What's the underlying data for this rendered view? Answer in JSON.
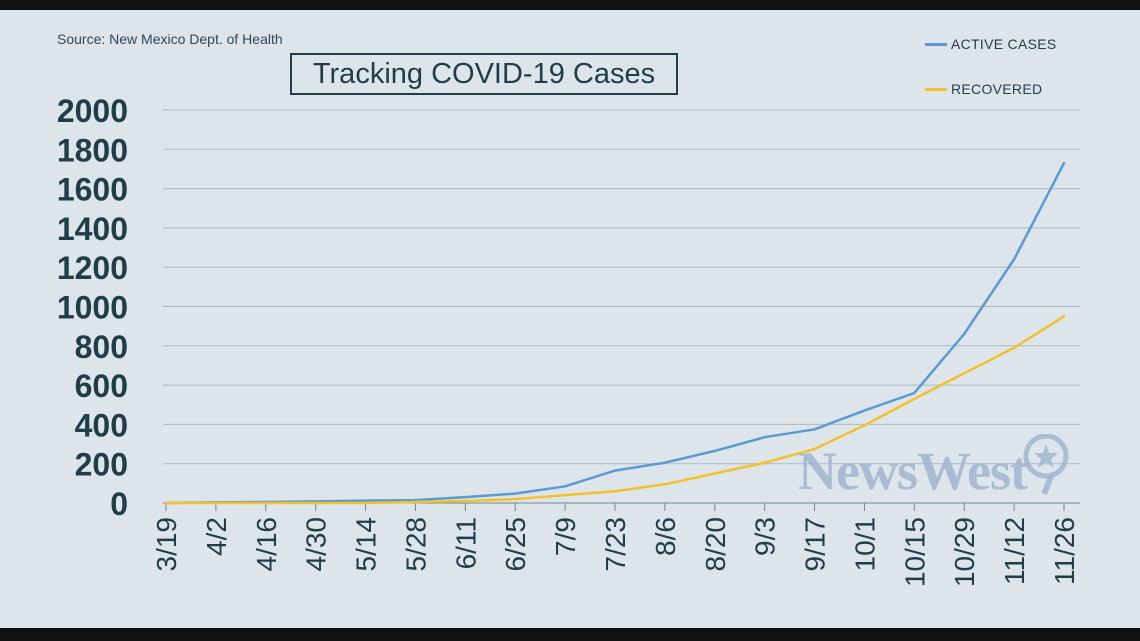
{
  "source": "Source: New Mexico Dept. of Health",
  "title": "Tracking COVID-19 Cases",
  "watermark": "NewsWest",
  "chart_data": {
    "type": "line",
    "title": "Tracking COVID-19 Cases",
    "xlabel": "",
    "ylabel": "",
    "ylim": [
      0,
      2000
    ],
    "yticks": [
      "0",
      "200",
      "400",
      "600",
      "800",
      "1000",
      "1200",
      "1400",
      "1600",
      "1800",
      "2000"
    ],
    "xticks": [
      "3/19",
      "4/2",
      "4/16",
      "4/30",
      "5/14",
      "5/28",
      "6/11",
      "6/25",
      "7/9",
      "7/23",
      "8/6",
      "8/20",
      "9/3",
      "9/17",
      "10/1",
      "10/15",
      "10/29",
      "11/12",
      "11/26"
    ],
    "grid": true,
    "legend_position": "top-right",
    "series": [
      {
        "name": "ACTIVE CASES",
        "color": "#5b9bd5",
        "values": [
          0,
          3,
          5,
          8,
          12,
          15,
          30,
          48,
          85,
          165,
          205,
          265,
          335,
          375,
          470,
          560,
          860,
          1240,
          1730
        ]
      },
      {
        "name": "RECOVERED",
        "color": "#f2c22d",
        "values": [
          0,
          0,
          0,
          0,
          0,
          5,
          10,
          20,
          40,
          60,
          95,
          150,
          205,
          275,
          395,
          530,
          660,
          790,
          950
        ]
      }
    ]
  }
}
